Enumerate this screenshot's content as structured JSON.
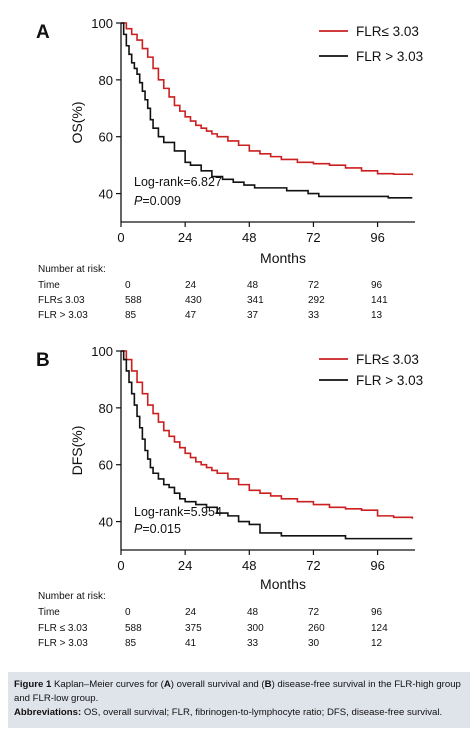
{
  "panels": [
    {
      "letter": "A",
      "ylabel": "OS(%)",
      "xlabel": "Months",
      "legend": [
        "FLR≤  3.03",
        "FLR > 3.03"
      ],
      "stat_line1": "Log-rank=6.827",
      "stat_line2_p": "P",
      "stat_line2_val": "=0.009",
      "risk_title": "Number at risk:",
      "risk_rows": [
        {
          "label": "Time",
          "values": [
            "0",
            "24",
            "48",
            "72",
            "96"
          ]
        },
        {
          "label": "FLR≤  3.03",
          "values": [
            "588",
            "430",
            "341",
            "292",
            "141"
          ]
        },
        {
          "label": "FLR > 3.03",
          "values": [
            "85",
            "47",
            "37",
            "33",
            "13"
          ]
        }
      ]
    },
    {
      "letter": "B",
      "ylabel": "DFS(%)",
      "xlabel": "Months",
      "legend": [
        "FLR≤  3.03",
        "FLR > 3.03"
      ],
      "stat_line1": "Log-rank=5.954",
      "stat_line2_p": "P",
      "stat_line2_val": "=0.015",
      "risk_title": "Number at risk:",
      "risk_rows": [
        {
          "label": "Time",
          "values": [
            "0",
            "24",
            "48",
            "72",
            "96"
          ]
        },
        {
          "label": "FLR ≤  3.03",
          "values": [
            "588",
            "375",
            "300",
            "260",
            "124"
          ]
        },
        {
          "label": "FLR > 3.03",
          "values": [
            "85",
            "41",
            "33",
            "30",
            "12"
          ]
        }
      ]
    }
  ],
  "chart_data": [
    {
      "type": "line",
      "xlabel": "Months",
      "ylabel": "OS(%)",
      "xlim": [
        0,
        110
      ],
      "ylim": [
        30,
        100
      ],
      "xticks": [
        0,
        24,
        48,
        72,
        96
      ],
      "yticks": [
        40,
        60,
        80,
        100
      ],
      "grid": false,
      "legend_position": "top-right",
      "series": [
        {
          "name": "FLR≤  3.03",
          "color": "#cc1f1f",
          "x": [
            0,
            2,
            4,
            6,
            8,
            10,
            12,
            14,
            16,
            18,
            20,
            22,
            24,
            26,
            28,
            30,
            32,
            34,
            36,
            40,
            44,
            48,
            52,
            56,
            60,
            66,
            72,
            78,
            84,
            90,
            96,
            102,
            109
          ],
          "y": [
            100,
            98,
            96,
            94,
            91,
            88,
            84,
            80,
            77,
            74,
            71,
            69,
            67,
            65.5,
            64,
            63,
            62,
            61,
            60,
            58.5,
            57,
            55,
            54,
            53,
            52,
            51,
            50.5,
            50,
            49,
            48,
            47,
            46.8,
            46.5
          ]
        },
        {
          "name": "FLR > 3.03",
          "color": "#111111",
          "x": [
            0,
            1,
            2,
            3,
            4,
            5,
            6,
            7,
            8,
            9,
            10,
            11,
            12,
            14,
            16,
            18,
            20,
            22,
            24,
            26,
            30,
            34,
            38,
            42,
            46,
            50,
            56,
            62,
            70,
            74,
            80,
            90,
            100,
            109
          ],
          "y": [
            100,
            96,
            92,
            89,
            86,
            84,
            82,
            79,
            76,
            73,
            70,
            66,
            63,
            60,
            58,
            58,
            55,
            55,
            51,
            50,
            48,
            46,
            45,
            44,
            43,
            42,
            42,
            41,
            40,
            39,
            39,
            39,
            38.5,
            38.5
          ]
        }
      ]
    },
    {
      "type": "line",
      "xlabel": "Months",
      "ylabel": "DFS(%)",
      "xlim": [
        0,
        110
      ],
      "ylim": [
        30,
        100
      ],
      "xticks": [
        0,
        24,
        48,
        72,
        96
      ],
      "yticks": [
        40,
        60,
        80,
        100
      ],
      "grid": false,
      "legend_position": "top-right",
      "series": [
        {
          "name": "FLR≤  3.03",
          "color": "#cc1f1f",
          "x": [
            0,
            2,
            4,
            6,
            8,
            10,
            12,
            14,
            16,
            18,
            20,
            22,
            24,
            26,
            28,
            30,
            32,
            34,
            36,
            40,
            44,
            48,
            52,
            56,
            60,
            66,
            72,
            78,
            84,
            90,
            96,
            102,
            109
          ],
          "y": [
            100,
            97,
            93,
            89,
            85,
            81,
            78,
            75,
            72,
            70,
            68,
            66,
            64,
            62.5,
            61,
            60,
            59,
            58,
            57,
            55,
            53,
            51,
            50,
            49,
            48,
            47,
            46,
            45,
            44.5,
            44,
            42,
            41.5,
            41
          ]
        },
        {
          "name": "FLR > 3.03",
          "color": "#111111",
          "x": [
            0,
            1,
            2,
            3,
            4,
            5,
            6,
            7,
            8,
            9,
            10,
            11,
            12,
            14,
            16,
            18,
            20,
            22,
            24,
            28,
            32,
            36,
            40,
            44,
            48,
            52,
            60,
            72,
            84,
            96,
            109
          ],
          "y": [
            100,
            97,
            93,
            89,
            85,
            81,
            77,
            73,
            69,
            65,
            62,
            59,
            57,
            55,
            53,
            52,
            50,
            48,
            47,
            46,
            45,
            43,
            42,
            40,
            39,
            36,
            35,
            35,
            34,
            34,
            34
          ]
        }
      ]
    }
  ],
  "caption": {
    "figure_label": "Figure 1",
    "figure_text_1": " Kaplan–Meier curves for (",
    "figure_A": "A",
    "figure_text_2": ") overall survival and (",
    "figure_B": "B",
    "figure_text_3": ") disease-free survival in the FLR-high group and FLR-low group.",
    "abbr_label": "Abbreviations:",
    "abbr_text": " OS, overall survival; FLR, fibrinogen-to-lymphocyte ratio; DFS, disease-free survival."
  }
}
